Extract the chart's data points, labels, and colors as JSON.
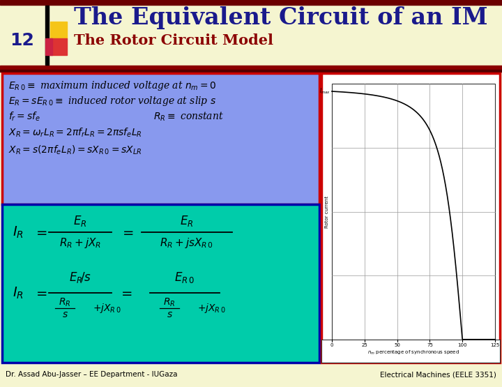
{
  "bg_color": "#f5f5d0",
  "title_text": "The Equivalent Circuit of an IM",
  "subtitle_text": "The Rotor Circuit Model",
  "title_color": "#1a1a8c",
  "subtitle_color": "#8b0000",
  "slide_number": "12",
  "slide_number_color": "#1a1a8c",
  "footer_left": "Dr. Assad Abu-Jasser – EE Department - IUGaza",
  "footer_right": "Electrical Machines (EELE 3351)",
  "footer_color": "#000000",
  "top_bar_color": "#8b0000",
  "accent_rect_yellow": "#f5c518",
  "accent_rect_red": "#cc0000",
  "box1_bg": "#8899ee",
  "box1_border": "#cc0000",
  "box2_bg": "#00ccaa",
  "box2_border": "#0000aa",
  "graph_border": "#cc0000",
  "graph_inner_border": "#555555",
  "graph_bg": "#ffffff"
}
